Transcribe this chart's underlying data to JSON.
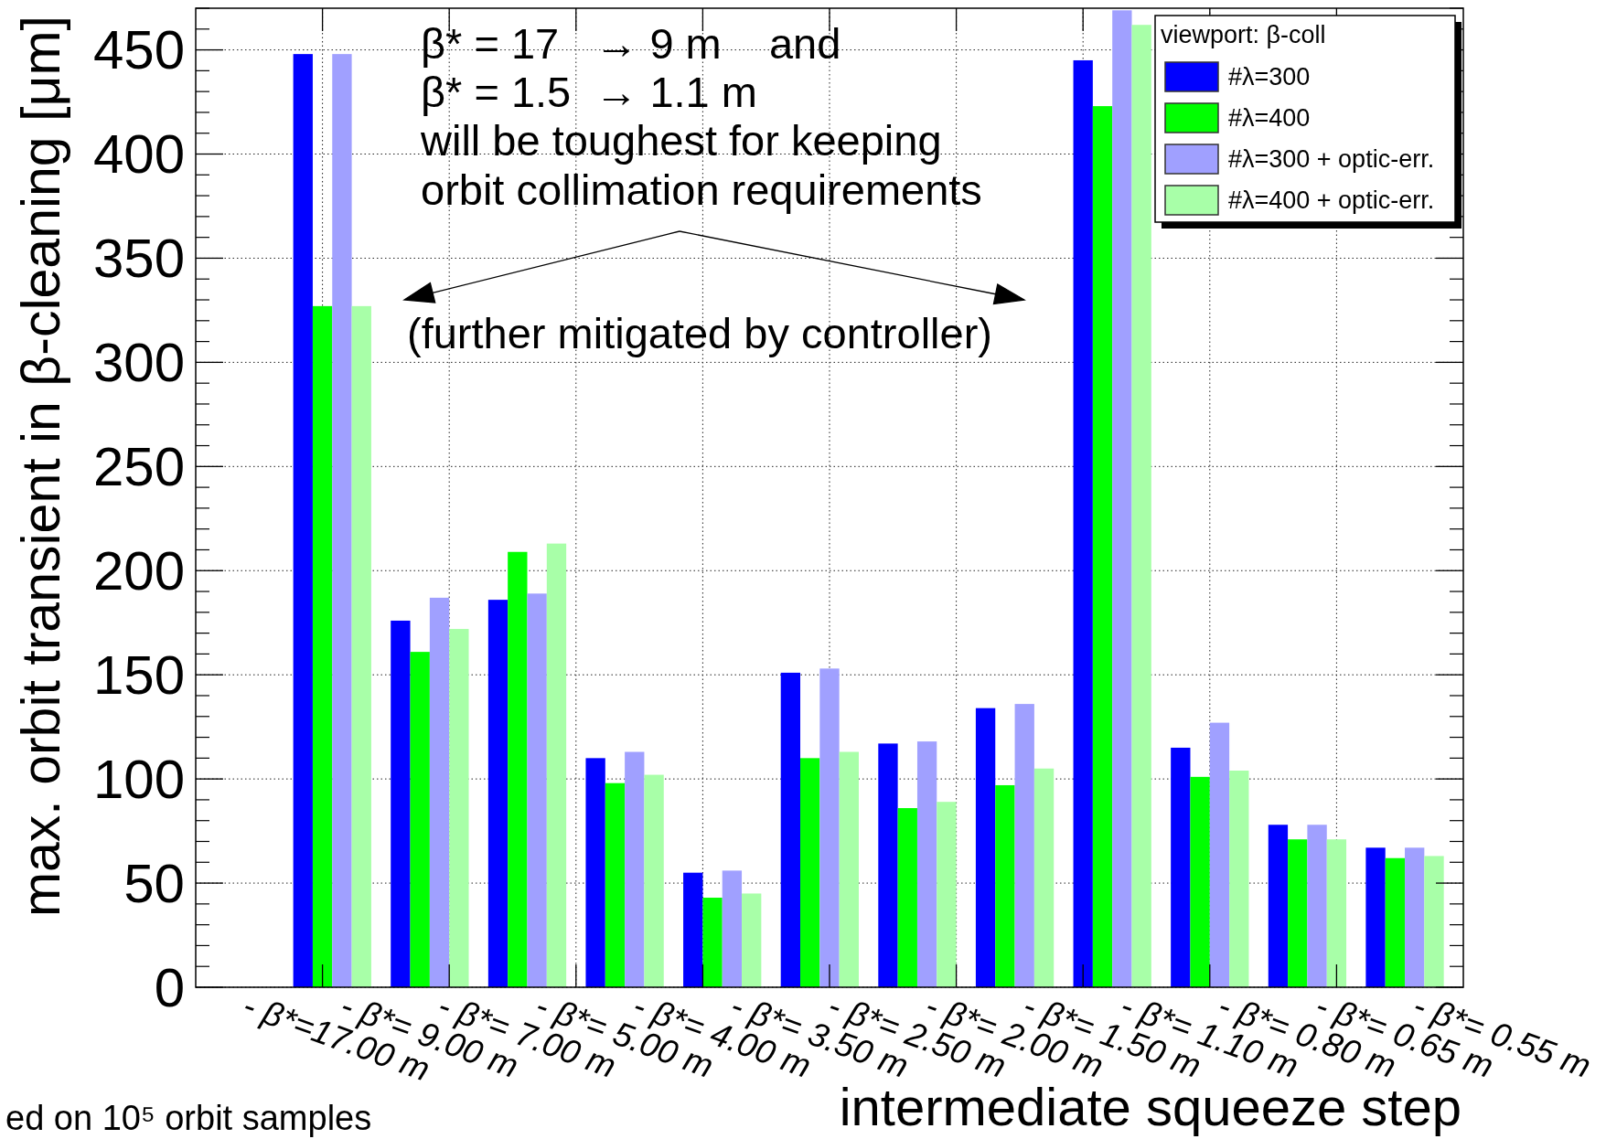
{
  "chart_data": {
    "type": "bar",
    "xlabel": "intermediate squeeze step",
    "ylabel": "max. orbit transient in β-cleaning [μm]",
    "legend_title": "viewport: β-coll",
    "legend": "top right",
    "grid": true,
    "categories": [
      "- β*=17.00 m",
      "- β*= 9.00 m",
      "- β*= 7.00 m",
      "- β*= 5.00 m",
      "- β*= 4.00 m",
      "- β*= 3.50 m",
      "- β*= 2.50 m",
      "- β*= 2.00 m",
      "- β*= 1.50 m",
      "- β*= 1.10 m",
      "- β*= 0.80 m",
      "- β*= 0.65 m",
      "- β*= 0.55 m"
    ],
    "ylim": [
      0,
      470
    ],
    "yticks": [
      0,
      50,
      100,
      150,
      200,
      250,
      300,
      350,
      400,
      450
    ],
    "series": [
      {
        "name": "#λ=300",
        "color": "#0000ff",
        "values": [
          0,
          448,
          176,
          186,
          110,
          55,
          151,
          117,
          134,
          445,
          115,
          78,
          67
        ]
      },
      {
        "name": "#λ=400",
        "color": "#00ff00",
        "values": [
          0,
          327,
          161,
          209,
          98,
          43,
          110,
          86,
          97,
          423,
          101,
          71,
          62
        ]
      },
      {
        "name": "#λ=300 + optic-err.",
        "color": "#a0a0ff",
        "values": [
          0,
          448,
          187,
          189,
          113,
          56,
          153,
          118,
          136,
          469,
          127,
          78,
          67
        ]
      },
      {
        "name": "#λ=400 + optic-err.",
        "color": "#a8ffa8",
        "values": [
          0,
          327,
          172,
          213,
          102,
          45,
          113,
          89,
          105,
          462,
          104,
          71,
          63
        ]
      }
    ],
    "annotations": [
      "β* = 17   → 9 m    and",
      "β* = 1.5  → 1.1 m",
      "will be toughest for keeping",
      "orbit collimation requirements",
      "(further mitigated by controller)",
      "ed on 10⁵ orbit samples"
    ]
  }
}
